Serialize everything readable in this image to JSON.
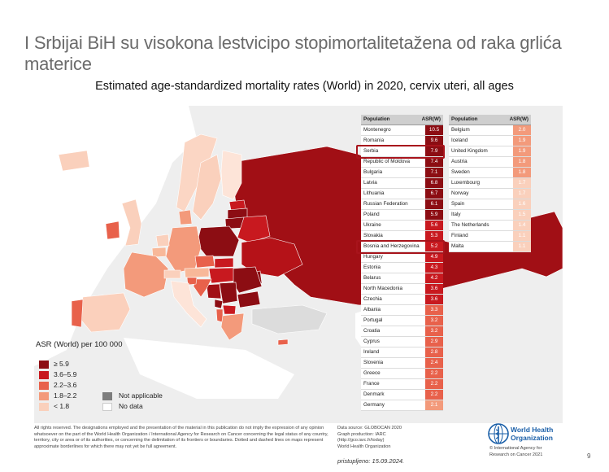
{
  "slide": {
    "title": "I Srbijai BiH su visokona lestvicipo stopimortalitetažena od raka grlića materice",
    "page_number": "9",
    "accessed_note": "pristupljeno: 15.09.2024."
  },
  "chart_data": {
    "type": "table",
    "title": "Estimated age-standardized mortality rates (World) in 2020, cervix uteri, all ages",
    "legend": {
      "title": "ASR (World) per 100 000",
      "classes": [
        {
          "label": "≥ 5.9",
          "color": "#8c0d13"
        },
        {
          "label": "3.6–5.9",
          "color": "#c8191f"
        },
        {
          "label": "2.2–3.6",
          "color": "#e8614b"
        },
        {
          "label": "1.8–2.2",
          "color": "#f39a7b"
        },
        {
          "label": "< 1.8",
          "color": "#fad0bc"
        }
      ],
      "not_applicable": {
        "label": "Not applicable",
        "color": "#7d7d7d"
      },
      "no_data": {
        "label": "No data",
        "color": "#ffffff"
      }
    },
    "table_headers": [
      "Population",
      "ASR(W)"
    ],
    "table_left": [
      {
        "population": "Montenegro",
        "asr": 10.5
      },
      {
        "population": "Romania",
        "asr": 9.6
      },
      {
        "population": "Serbia",
        "asr": 7.9
      },
      {
        "population": "Republic of Moldova",
        "asr": 7.4
      },
      {
        "population": "Bulgaria",
        "asr": 7.1
      },
      {
        "population": "Latvia",
        "asr": 6.8
      },
      {
        "population": "Lithuania",
        "asr": 6.7
      },
      {
        "population": "Russian Federation",
        "asr": 6.1
      },
      {
        "population": "Poland",
        "asr": 5.9
      },
      {
        "population": "Ukraine",
        "asr": 5.6
      },
      {
        "population": "Slovakia",
        "asr": 5.3
      },
      {
        "population": "Bosnia and Herzegovina",
        "asr": 5.2
      },
      {
        "population": "Hungary",
        "asr": 4.9
      },
      {
        "population": "Estonia",
        "asr": 4.3
      },
      {
        "population": "Belarus",
        "asr": 4.2
      },
      {
        "population": "North Macedonia",
        "asr": 3.6
      },
      {
        "population": "Czechia",
        "asr": 3.6
      },
      {
        "population": "Albania",
        "asr": 3.3
      },
      {
        "population": "Portugal",
        "asr": 3.2
      },
      {
        "population": "Croatia",
        "asr": 3.2
      },
      {
        "population": "Cyprus",
        "asr": 2.9
      },
      {
        "population": "Ireland",
        "asr": 2.8
      },
      {
        "population": "Slovenia",
        "asr": 2.4
      },
      {
        "population": "Greece",
        "asr": 2.2
      },
      {
        "population": "France",
        "asr": 2.2
      },
      {
        "population": "Denmark",
        "asr": 2.2
      },
      {
        "population": "Germany",
        "asr": 2.1
      }
    ],
    "table_right": [
      {
        "population": "Belgium",
        "asr": 2.0
      },
      {
        "population": "Iceland",
        "asr": 1.9
      },
      {
        "population": "United Kingdom",
        "asr": 1.9
      },
      {
        "population": "Austria",
        "asr": 1.8
      },
      {
        "population": "Sweden",
        "asr": 1.8
      },
      {
        "population": "Luxembourg",
        "asr": 1.7
      },
      {
        "population": "Norway",
        "asr": 1.7
      },
      {
        "population": "Spain",
        "asr": 1.6
      },
      {
        "population": "Italy",
        "asr": 1.5
      },
      {
        "population": "The Netherlands",
        "asr": 1.4
      },
      {
        "population": "Finland",
        "asr": 1.1
      },
      {
        "population": "Malta",
        "asr": 1.1
      }
    ],
    "highlighted": [
      "Serbia",
      "Bosnia and Herzegovina"
    ]
  },
  "footer": {
    "disclaimer": "All rights reserved. The designations employed and the presentation of the material in this publication do not imply the expression of any opinion whatsoever on the part of the World Health Organization / International Agency for Research on Cancer concerning the legal status of any country, territory, city or area or of its authorities, or concerning the delimitation of its frontiers or boundaries. Dotted and dashed lines on maps represent approximate borderlines for which there may not yet be full agreement.",
    "source_lines": [
      "Data source: GLOBOCAN 2020",
      "Graph production: IARC",
      "(http://gco.iarc.fr/today)",
      "World Health Organization"
    ],
    "who_name_line1": "World Health",
    "who_name_line2": "Organization",
    "who_sub_lines": [
      "© International Agency for",
      "Research on Cancer 2021"
    ]
  }
}
